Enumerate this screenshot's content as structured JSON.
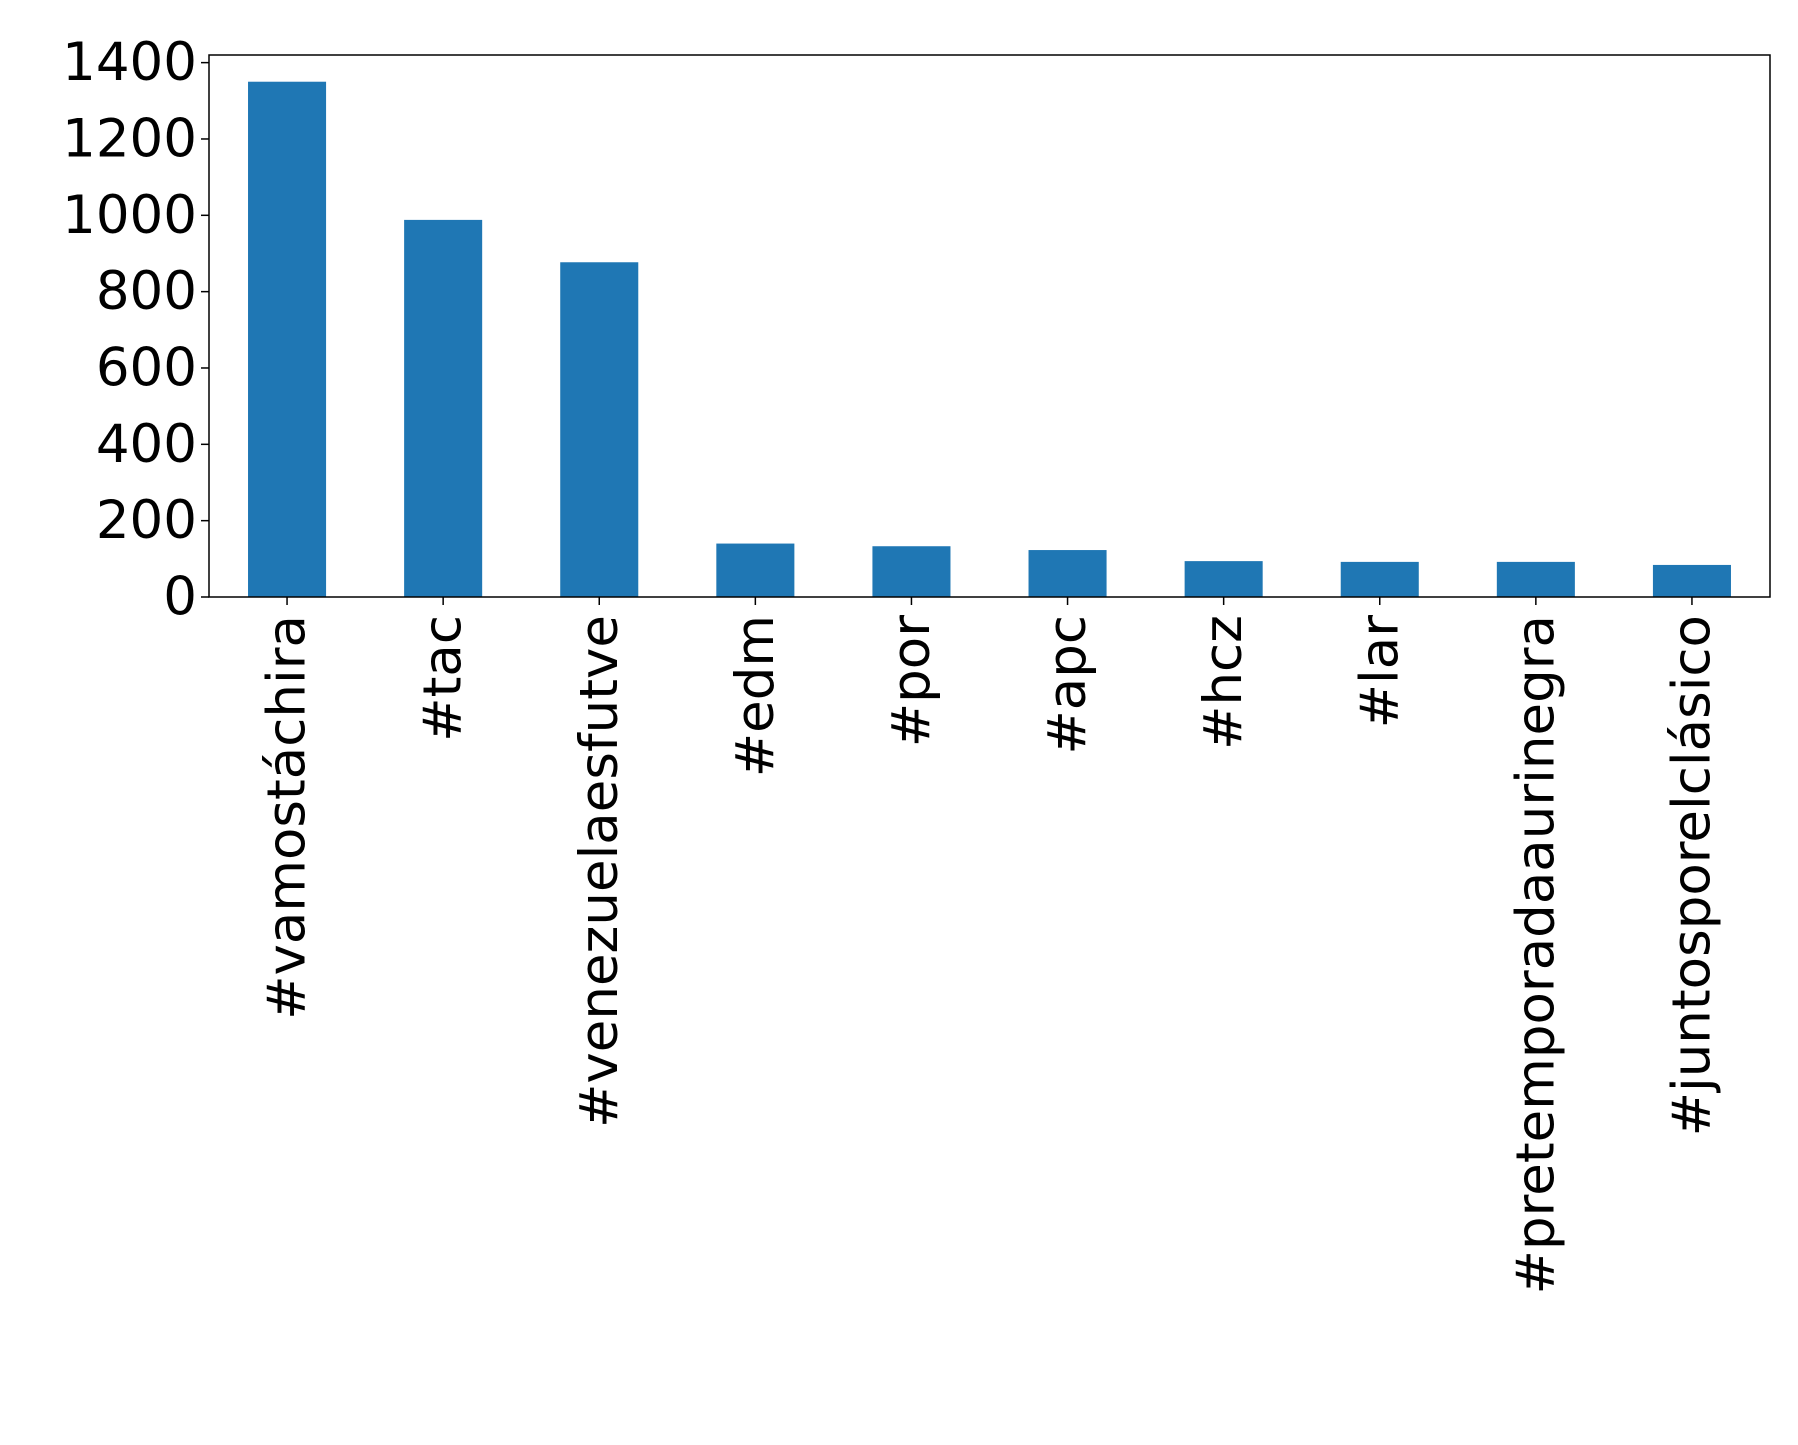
{
  "chart_data": {
    "type": "bar",
    "categories": [
      "#vamostáchira",
      "#tac",
      "#venezuelaesfutve",
      "#edm",
      "#por",
      "#apc",
      "#hcz",
      "#lar",
      "#pretemporadaaurinegra",
      "#juntosporelclásico"
    ],
    "values": [
      1350,
      988,
      877,
      140,
      133,
      123,
      94,
      92,
      92,
      84
    ],
    "ylim": [
      0,
      1420
    ],
    "yticks": [
      0,
      200,
      400,
      600,
      800,
      1000,
      1200,
      1400
    ],
    "ytick_labels": [
      "0",
      "200",
      "400",
      "600",
      "800",
      "1000",
      "1200",
      "1400"
    ],
    "xlabel_rotation": "vertical",
    "grid": false,
    "legend": false,
    "colors": {
      "bar": "#1f77b4",
      "axes": "#000000",
      "background": "#ffffff"
    }
  }
}
